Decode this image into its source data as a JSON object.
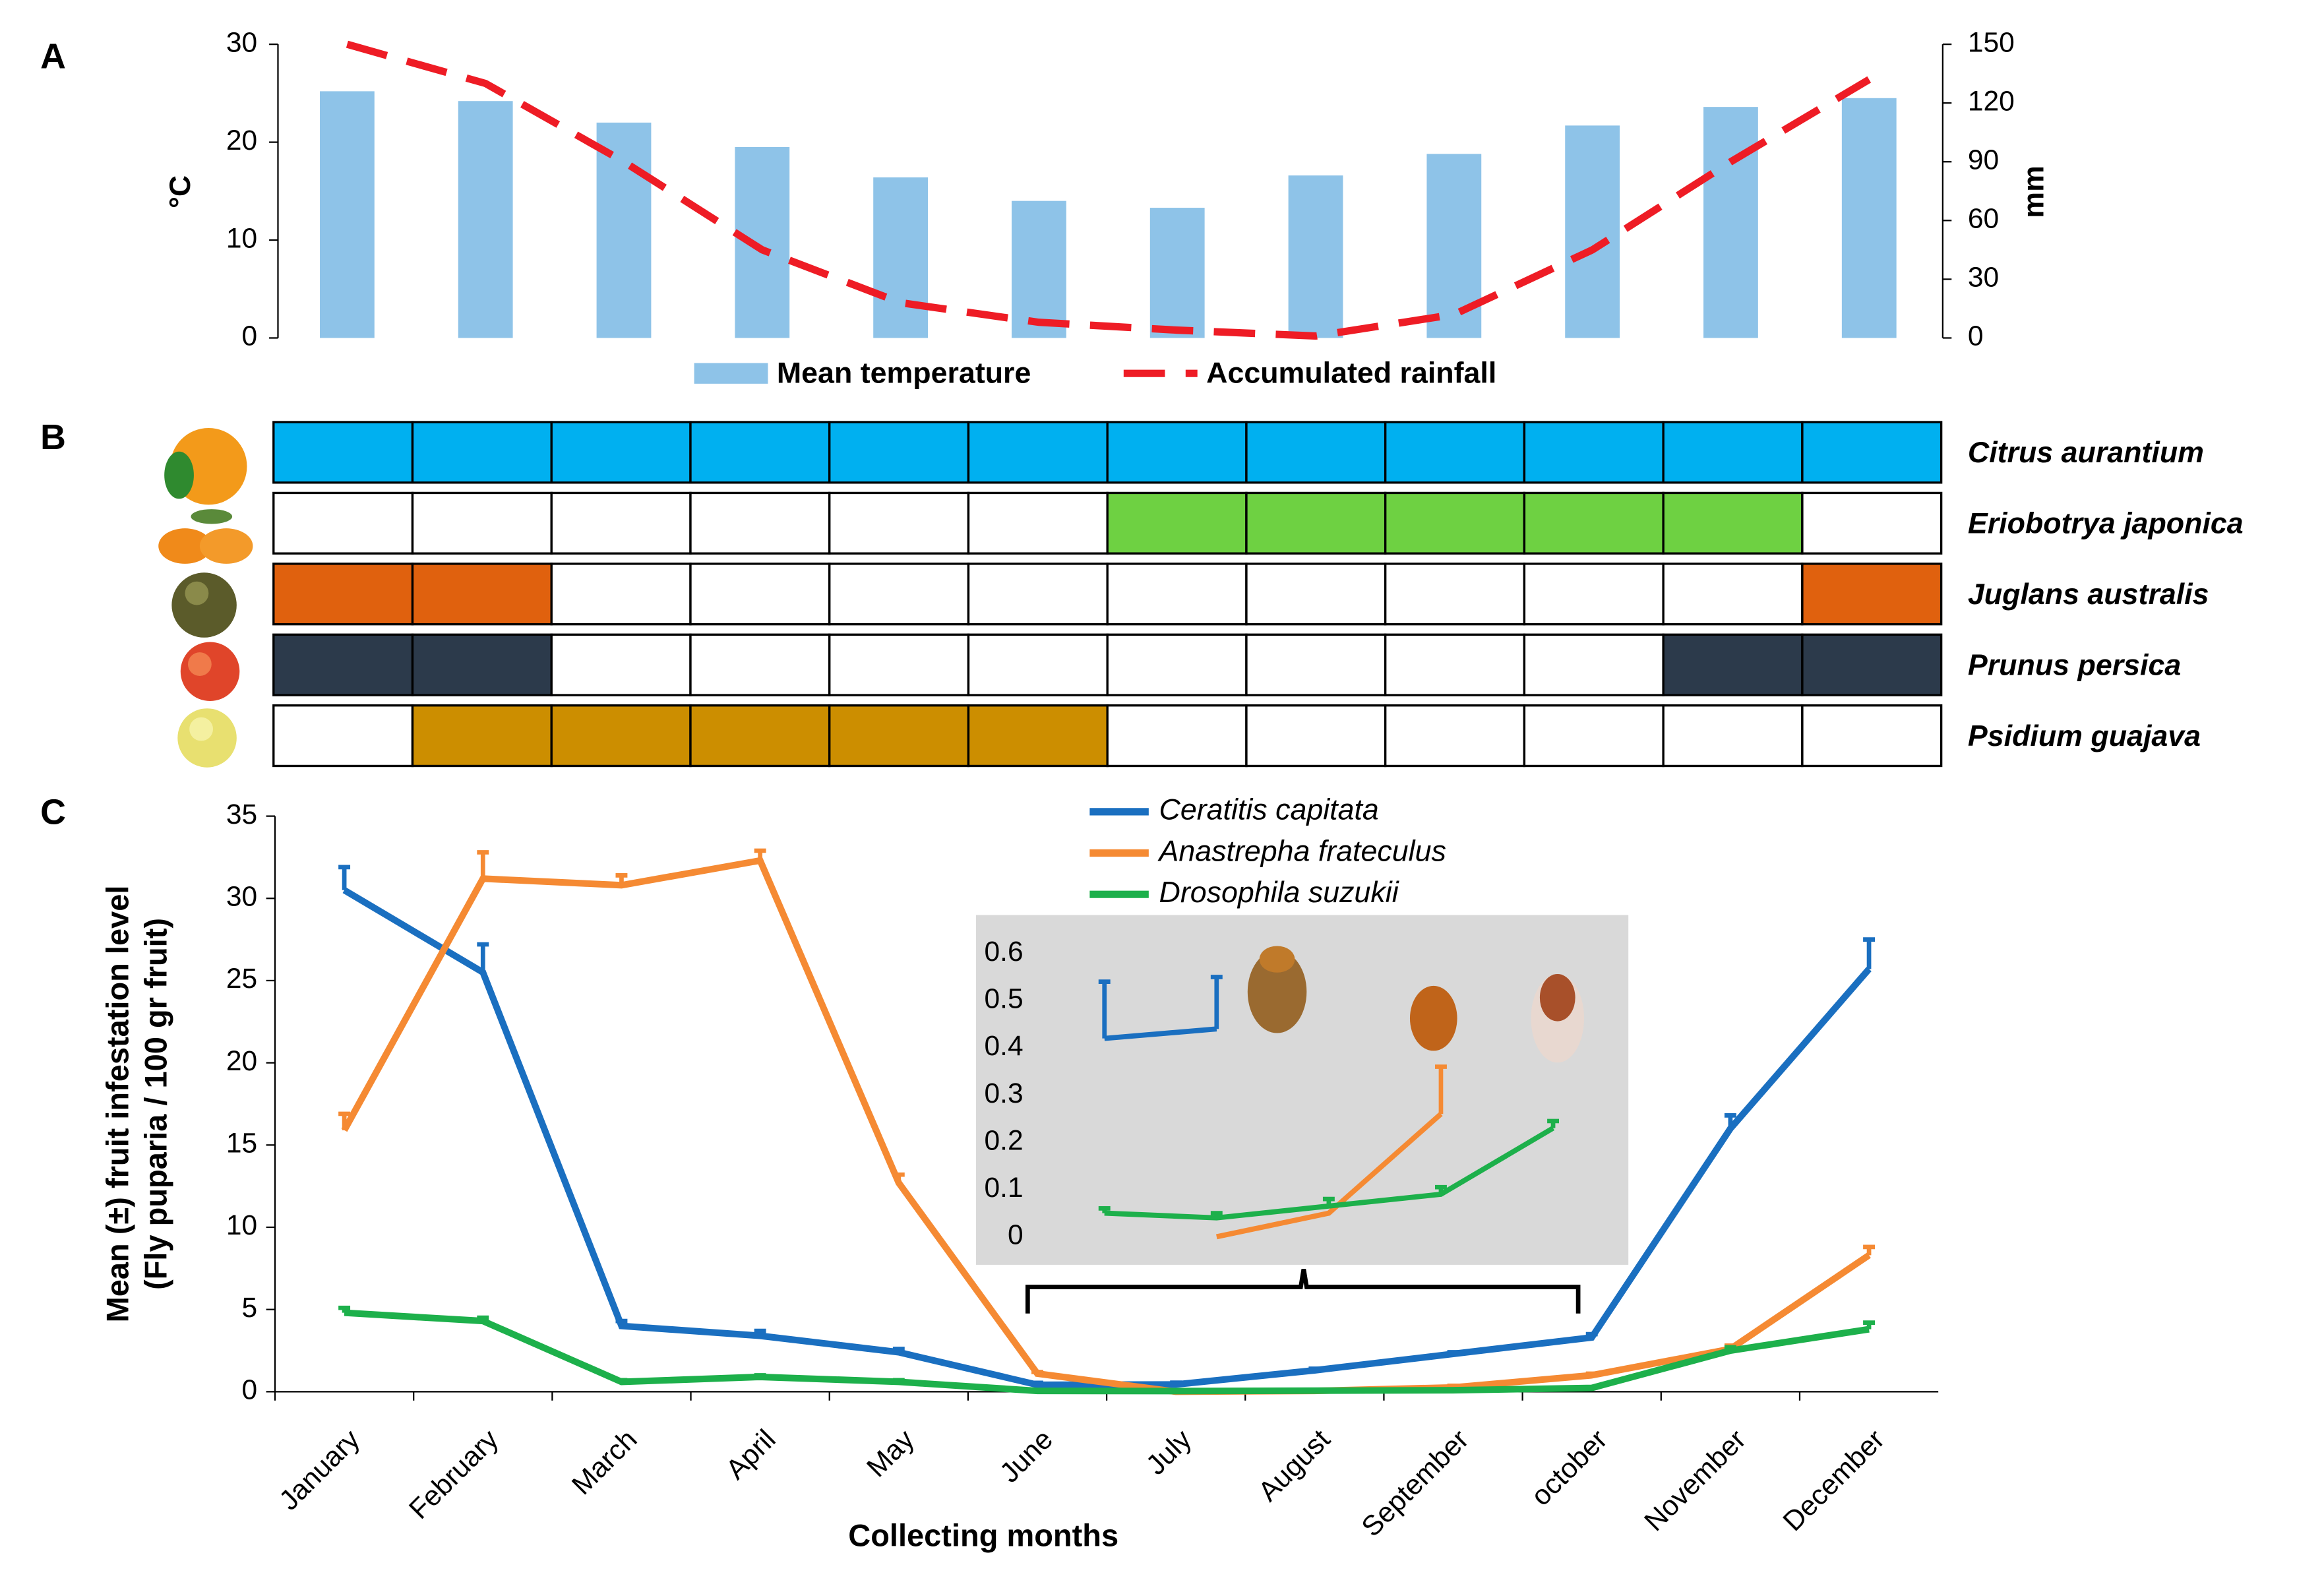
{
  "chart_data": [
    {
      "type": "bar",
      "panel": "A",
      "ylabel": "°C",
      "y2label": "mm",
      "ylim": [
        0,
        30
      ],
      "yticks": [
        0,
        10,
        20,
        30
      ],
      "y2lim": [
        0,
        150
      ],
      "y2ticks": [
        0,
        30,
        60,
        90,
        120,
        150
      ],
      "series": [
        {
          "name": "Mean temperature",
          "type": "bar",
          "color": "#8ec3e8",
          "values": [
            25.2,
            24.2,
            22,
            19.5,
            16.4,
            14,
            13.3,
            16.6,
            18.8,
            21.7,
            23.6,
            24.5
          ]
        },
        {
          "name": "Accumulated rainfall",
          "type": "line",
          "axis": "y2",
          "line_style": "dashed",
          "color": "#ee1c25",
          "values": [
            150,
            130,
            90,
            45,
            18,
            8,
            4,
            1,
            12,
            45,
            90,
            132
          ]
        }
      ]
    },
    {
      "type": "heatmap",
      "panel": "B",
      "series": [
        {
          "name": "Citrus aurantium",
          "color": "#00b0f0",
          "values": [
            1,
            1,
            1,
            1,
            1,
            1,
            1,
            1,
            1,
            1,
            1,
            1
          ]
        },
        {
          "name": "Eriobotrya japonica",
          "color": "#6ed142",
          "values": [
            0,
            0,
            0,
            0,
            0,
            0,
            1,
            1,
            1,
            1,
            1,
            0
          ]
        },
        {
          "name": "Juglans australis",
          "color": "#e0610e",
          "values": [
            1,
            1,
            0,
            0,
            0,
            0,
            0,
            0,
            0,
            0,
            0,
            1
          ]
        },
        {
          "name": "Prunus persica",
          "color": "#2c3a4b",
          "values": [
            1,
            1,
            0,
            0,
            0,
            0,
            0,
            0,
            0,
            0,
            1,
            1
          ]
        },
        {
          "name": "Psidium guajava",
          "color": "#cc8e00",
          "values": [
            0,
            1,
            1,
            1,
            1,
            1,
            0,
            0,
            0,
            0,
            0,
            0
          ]
        }
      ]
    },
    {
      "type": "line",
      "panel": "C",
      "xlabel": "Collecting months",
      "ylabel": [
        "Mean (±) fruit infestation level",
        "(Fly puparia / 100 gr fruit)"
      ],
      "categories": [
        "January",
        "February",
        "March",
        "April",
        "May",
        "June",
        "July",
        "August",
        "September",
        "october",
        "November",
        "December"
      ],
      "ylim": [
        0,
        35
      ],
      "yticks": [
        0,
        5,
        10,
        15,
        20,
        25,
        30,
        35
      ],
      "series": [
        {
          "name": "Ceratitis capitata",
          "color": "#1a6fc0",
          "values": [
            30.5,
            25.5,
            4.0,
            3.4,
            2.4,
            0.42,
            0.44,
            1.3,
            2.3,
            3.3,
            16,
            25.7
          ],
          "errors": [
            1.4,
            1.7,
            0.3,
            0.3,
            0.2,
            0.12,
            0.11,
            0.1,
            0.1,
            0.2,
            0.8,
            1.8
          ]
        },
        {
          "name": "Anastrepha frateculus",
          "color": "#f58a33",
          "values": [
            15.9,
            31.2,
            30.8,
            32.3,
            12.7,
            1.1,
            0,
            0.05,
            0.26,
            1.0,
            2.6,
            8.3
          ],
          "errors": [
            1.0,
            1.6,
            0.6,
            0.6,
            0.5,
            0.1,
            0,
            0,
            0.1,
            0.1,
            0.2,
            0.5
          ]
        },
        {
          "name": "Drosophila suzukii",
          "color": "#1db04b",
          "values": [
            4.8,
            4.3,
            0.6,
            0.9,
            0.6,
            0.05,
            0.04,
            0.065,
            0.09,
            0.23,
            2.5,
            3.8
          ],
          "errors": [
            0.3,
            0.2,
            0.1,
            0.1,
            0.1,
            0.01,
            0.01,
            0.015,
            0.015,
            0.015,
            0.2,
            0.4
          ]
        }
      ],
      "inset": {
        "ylim": [
          0,
          0.6
        ],
        "yticks": [
          0,
          0.1,
          0.2,
          0.3,
          0.4,
          0.5,
          0.6
        ],
        "series": [
          {
            "color": "#1a6fc0",
            "values": [
              0.42,
              0.44,
              null,
              null,
              null
            ],
            "errors": [
              0.12,
              0.11,
              null,
              null,
              null
            ]
          },
          {
            "color": "#f58a33",
            "values": [
              null,
              0,
              0.05,
              0.26,
              null
            ],
            "errors": [
              null,
              null,
              null,
              0.1,
              null
            ]
          },
          {
            "color": "#1db04b",
            "values": [
              0.05,
              0.04,
              0.065,
              0.09,
              0.23
            ],
            "errors": [
              0.01,
              0.01,
              0.015,
              0.015,
              0.015
            ]
          }
        ]
      }
    }
  ]
}
